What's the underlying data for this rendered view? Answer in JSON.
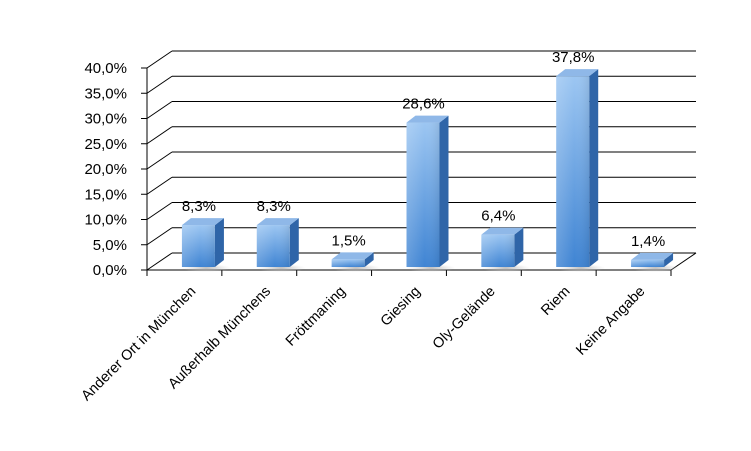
{
  "chart_data": {
    "type": "bar",
    "style": "3d-column",
    "categories": [
      "Anderer Ort in München",
      "Außerhalb Münchens",
      "Fröttmaning",
      "Giesing",
      "Oly-Gelände",
      "Riem",
      "Keine Angabe"
    ],
    "values": [
      8.3,
      8.3,
      1.5,
      28.6,
      6.4,
      37.8,
      1.4
    ],
    "data_labels": [
      "8,3%",
      "8,3%",
      "1,5%",
      "28,6%",
      "6,4%",
      "37,8%",
      "1,4%"
    ],
    "y_ticks": [
      0,
      5,
      10,
      15,
      20,
      25,
      30,
      35,
      40
    ],
    "y_tick_labels": [
      "0,0%",
      "5,0%",
      "10,0%",
      "15,0%",
      "20,0%",
      "25,0%",
      "30,0%",
      "35,0%",
      "40,0%"
    ],
    "ylim": [
      0,
      40
    ],
    "grid": true,
    "legend": "none",
    "colors": {
      "bar_top": "#a9cdf5",
      "bar_front_light": "#9cc6f2",
      "bar_front_dark": "#3f84d3",
      "bar_side": "#2f65a8",
      "bar_top_face": "#8fb8e8",
      "grid": "#000000",
      "floor_shadow": "#c8c8c8"
    }
  }
}
